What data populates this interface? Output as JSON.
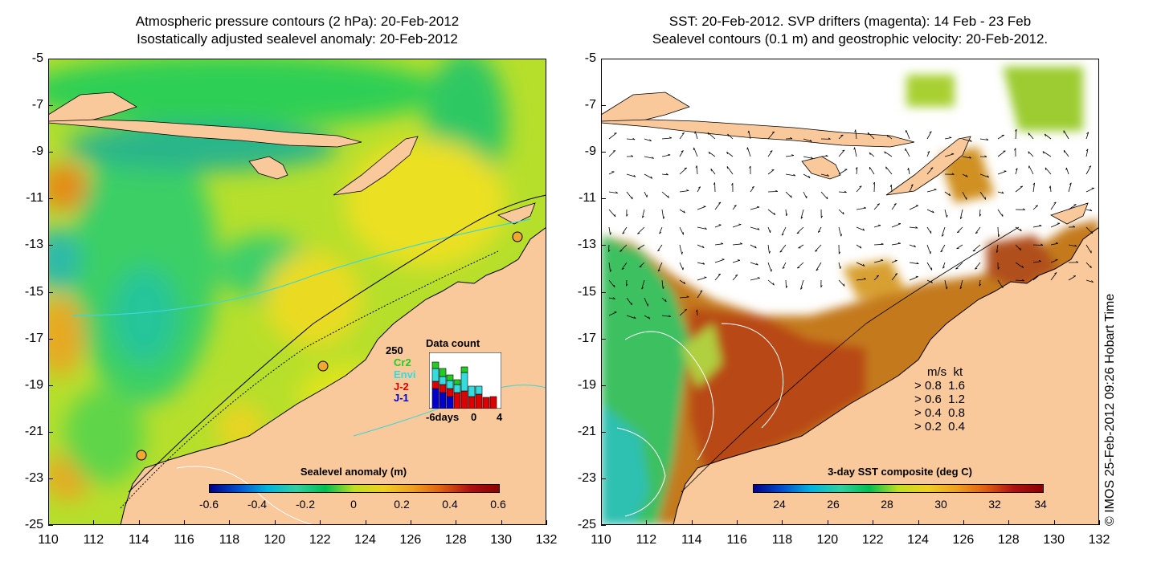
{
  "left_panel": {
    "title_line1": "Atmospheric pressure contours (2 hPa): 20-Feb-2012",
    "title_line2": "Isostatically adjusted sealevel anomaly: 20-Feb-2012",
    "colorbar_title": "Sealevel anomaly (m)",
    "colorbar_ticks": [
      "-0.6",
      "-0.4",
      "-0.2",
      "0",
      "0.2",
      "0.4",
      "0.6"
    ],
    "data_count": {
      "title": "Data count",
      "max_label": "250",
      "missions": [
        {
          "name": "Cr2",
          "color": "#22cc22"
        },
        {
          "name": "Envi",
          "color": "#33dddd"
        },
        {
          "name": "J-2",
          "color": "#dd0000"
        },
        {
          "name": "J-1",
          "color": "#0000cc"
        }
      ],
      "x_labels": [
        "-6days",
        "0",
        "4"
      ]
    }
  },
  "right_panel": {
    "title_line1": "SST: 20-Feb-2012. SVP drifters (magenta): 14 Feb - 23 Feb",
    "title_line2": "Sealevel contours (0.1 m) and geostrophic velocity: 20-Feb-2012.",
    "colorbar_title": "3-day SST composite (deg C)",
    "colorbar_ticks": [
      "24",
      "26",
      "28",
      "30",
      "32",
      "34"
    ],
    "velocity_legend": {
      "header": "m/s  kt",
      "rows": [
        "0.8  1.6",
        "0.6  1.2",
        "0.4  0.8",
        "0.2  0.4"
      ]
    }
  },
  "axes": {
    "x_ticks": [
      "110",
      "112",
      "114",
      "116",
      "118",
      "120",
      "122",
      "124",
      "126",
      "128",
      "130",
      "132"
    ],
    "y_ticks": [
      "-5",
      "-7",
      "-9",
      "-11",
      "-13",
      "-15",
      "-17",
      "-19",
      "-21",
      "-23",
      "-25"
    ]
  },
  "credit": "© IMOS 25-Feb-2012 09:26 Hobart Time",
  "colors": {
    "land": "#f9c89b",
    "sla_low": "#00b26a",
    "sla_mid": "#c8e41e",
    "sst_high": "#b84a12"
  }
}
